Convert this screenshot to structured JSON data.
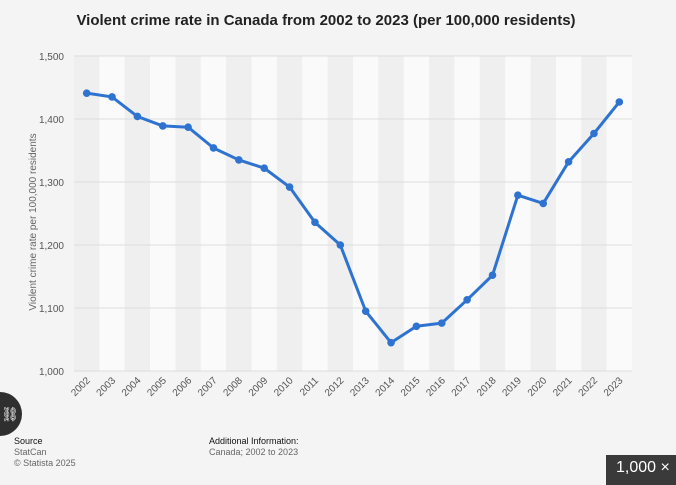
{
  "chart_data": {
    "type": "line",
    "title": "Violent crime rate in Canada from 2002 to 2023 (per 100,000 residents)",
    "xlabel": "",
    "ylabel": "Violent crime rate per 100,000 residents",
    "ylim": [
      1000,
      1500
    ],
    "yticks": [
      1000,
      1100,
      1200,
      1300,
      1400,
      1500
    ],
    "ytick_labels": [
      "1,000",
      "1,100",
      "1,200",
      "1,300",
      "1,400",
      "1,500"
    ],
    "categories": [
      "2002",
      "2003",
      "2004",
      "2005",
      "2006",
      "2007",
      "2008",
      "2009",
      "2010",
      "2011",
      "2012",
      "2013",
      "2014",
      "2015",
      "2016",
      "2017",
      "2018",
      "2019",
      "2020",
      "2021",
      "2022",
      "2023"
    ],
    "series": [
      {
        "name": "Violent crime rate",
        "values": [
          1441,
          1435,
          1404,
          1389,
          1387,
          1354,
          1335,
          1322,
          1292,
          1236,
          1200,
          1095,
          1045,
          1071,
          1076,
          1113,
          1152,
          1279,
          1266,
          1332,
          1377,
          1427
        ]
      }
    ],
    "grid": true,
    "color": "#2f73d1"
  },
  "footer": {
    "source_label": "Source",
    "source_line1": "StatCan",
    "source_line2": "© Statista 2025",
    "additional_label": "Additional Information:",
    "additional_line": "Canada; 2002 to 2023"
  },
  "overlay": {
    "corner_icon": "link-icon",
    "zoom_label": "1,000 ×"
  }
}
